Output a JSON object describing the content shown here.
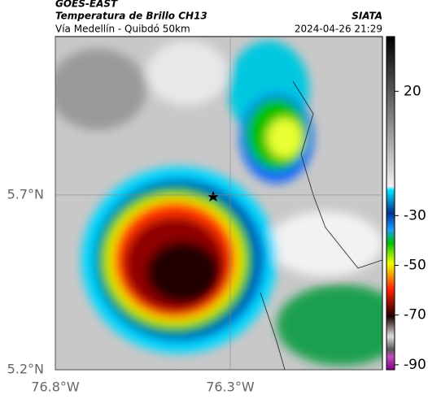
{
  "header": {
    "source": "GOES-EAST",
    "title": "Temperatura de Brillo CH13",
    "org": "SIATA",
    "subtitle": "Vía Medellín - Quibdó 50km",
    "datetime": "2024-04-26 21:29"
  },
  "map": {
    "xlim": [
      -76.8,
      -75.865
    ],
    "ylim": [
      5.2,
      6.153
    ],
    "xticks": [
      {
        "value": -76.8,
        "label": "76.8°W"
      },
      {
        "value": -76.3,
        "label": "76.3°W"
      }
    ],
    "yticks": [
      {
        "value": 5.7,
        "label": "5.7°N"
      },
      {
        "value": 5.2,
        "label": "5.2°N"
      }
    ]
  },
  "colorbar": {
    "lim": [
      42,
      -92
    ],
    "ticks": [
      20,
      -30,
      -50,
      -70,
      -90
    ]
  }
}
